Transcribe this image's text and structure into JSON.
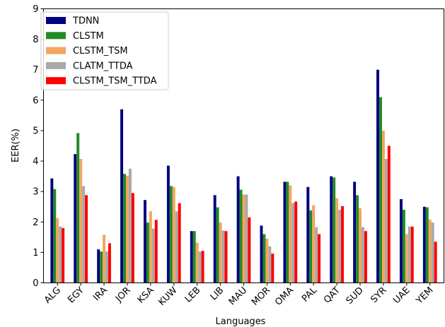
{
  "chart_data": {
    "type": "bar",
    "title": "",
    "xlabel": "Languages",
    "ylabel": "EER(%)",
    "ylim": [
      0,
      9
    ],
    "yticks": [
      "0",
      "1",
      "2",
      "3",
      "4",
      "5",
      "6",
      "7",
      "8",
      "9"
    ],
    "grid": false,
    "legend_position": "top-left",
    "categories": [
      "ALG",
      "EGY",
      "IRA",
      "JOR",
      "KSA",
      "KUW",
      "LEB",
      "LIB",
      "MAU",
      "MOR",
      "OMA",
      "PAL",
      "QAT",
      "SUD",
      "SYR",
      "UAE",
      "YEM"
    ],
    "series": [
      {
        "name": "TDNN",
        "color": "#000080",
        "values": [
          3.43,
          4.23,
          1.1,
          5.7,
          2.72,
          3.85,
          1.7,
          2.88,
          3.5,
          1.88,
          3.32,
          3.15,
          3.5,
          3.32,
          7.0,
          2.75,
          2.5
        ]
      },
      {
        "name": "CLSTM",
        "color": "#228b22",
        "values": [
          3.08,
          4.92,
          1.03,
          3.58,
          1.98,
          3.18,
          1.7,
          2.48,
          3.06,
          1.6,
          3.32,
          2.38,
          3.46,
          2.88,
          6.1,
          2.4,
          2.48
        ]
      },
      {
        "name": "CLSTM_TSM",
        "color": "#f4a460",
        "values": [
          2.13,
          4.07,
          1.58,
          3.52,
          2.35,
          3.15,
          1.32,
          1.98,
          2.9,
          1.45,
          3.2,
          2.55,
          2.78,
          2.45,
          5.0,
          1.6,
          2.08
        ]
      },
      {
        "name": "CLATM_TTDA",
        "color": "#a9a9a9",
        "values": [
          1.85,
          3.18,
          1.03,
          3.75,
          1.78,
          2.35,
          1.03,
          1.72,
          2.9,
          1.2,
          2.62,
          1.83,
          2.4,
          1.83,
          4.07,
          1.85,
          1.98
        ]
      },
      {
        "name": "CLSTM_TSM_TTDA",
        "color": "#ff0000",
        "values": [
          1.8,
          2.88,
          1.3,
          2.95,
          2.07,
          2.62,
          1.05,
          1.7,
          2.15,
          0.96,
          2.67,
          1.6,
          2.52,
          1.7,
          4.5,
          1.85,
          1.35
        ]
      }
    ]
  }
}
